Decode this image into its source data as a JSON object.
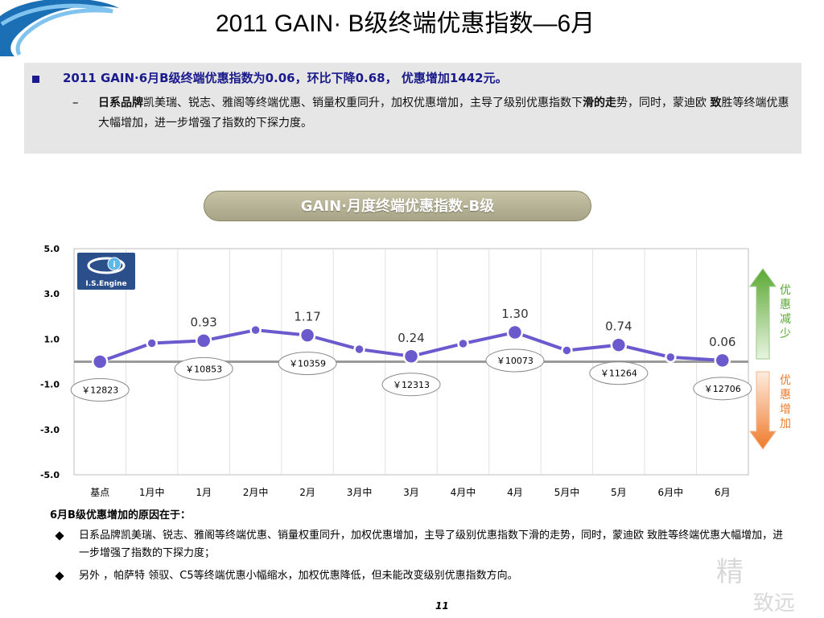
{
  "title": "2011 GAIN· B级终端优惠指数—6月",
  "summary": {
    "headline": "2011 GAIN·6月B级终端优惠指数为0.06，环比下降0.68， 优惠增加1442元。",
    "dash": "–",
    "detail_bold_1": "日系品牌",
    "detail_1": "凯美瑞、锐志、雅阁等终端优惠、销量权重同升，加权优惠增加，主导了级别优惠指数下",
    "detail_bold_2": "滑的走",
    "detail_2": "势，同时，蒙迪欧 ",
    "detail_bold_3": "致",
    "detail_3": "胜等终端优惠大幅增加，进一步增强了指数的下探力度。"
  },
  "chart_header": "GAIN·月度终端优惠指数-B级",
  "logo": {
    "text": "I.S.Engine",
    "glyph": "i"
  },
  "arrows": {
    "up_label": "优惠减少",
    "down_label": "优惠增加",
    "up_color": "#5aa832",
    "down_color": "#ef7a2a"
  },
  "chart_data": {
    "type": "line",
    "categories": [
      "基点",
      "1月中",
      "1月",
      "2月中",
      "2月",
      "3月中",
      "3月",
      "4月中",
      "4月",
      "5月中",
      "5月",
      "6月中",
      "6月"
    ],
    "values": [
      0.0,
      0.82,
      0.93,
      1.4,
      1.17,
      0.55,
      0.24,
      0.8,
      1.3,
      0.5,
      0.74,
      0.2,
      0.06
    ],
    "ylim": [
      -5.0,
      5.0
    ],
    "yticks": [
      "5.0",
      "3.0",
      "1.0",
      "-1.0",
      "-3.0",
      "-5.0"
    ],
    "ytick_values": [
      5,
      3,
      1,
      -1,
      -3,
      -5
    ],
    "point_labels": [
      {
        "index": 2,
        "text": "0.93"
      },
      {
        "index": 4,
        "text": "1.17"
      },
      {
        "index": 6,
        "text": "0.24"
      },
      {
        "index": 8,
        "text": "1.30"
      },
      {
        "index": 10,
        "text": "0.74"
      },
      {
        "index": 12,
        "text": "0.06"
      }
    ],
    "price_labels": [
      {
        "index": 0,
        "text": "￥12823",
        "pos": "below"
      },
      {
        "index": 2,
        "text": "￥10853",
        "pos": "below"
      },
      {
        "index": 4,
        "text": "￥10359",
        "pos": "below"
      },
      {
        "index": 6,
        "text": "￥12313",
        "pos": "below"
      },
      {
        "index": 8,
        "text": "￥10073",
        "pos": "below"
      },
      {
        "index": 10,
        "text": "￥11264",
        "pos": "below"
      },
      {
        "index": 12,
        "text": "￥12706",
        "pos": "below"
      }
    ],
    "line_color": "#6a5acd",
    "baseline_color": "#9a9a9a",
    "grid": true
  },
  "reasons": {
    "title": "6月B级优惠增加的原因在于：",
    "items": [
      "日系品牌凯美瑞、锐志、雅阁等终端优惠、销量权重同升，加权优惠增加，主导了级别优惠指数下滑的走势，同时，蒙迪欧 致胜等终端优惠大幅增加，进一步增强了指数的下探力度；",
      "另外 ，帕萨特 领驭、C5等终端优惠小幅缩水，加权优惠降低，但未能改变级别优惠指数方向。"
    ]
  },
  "watermark": "精致远",
  "page_number": "11"
}
